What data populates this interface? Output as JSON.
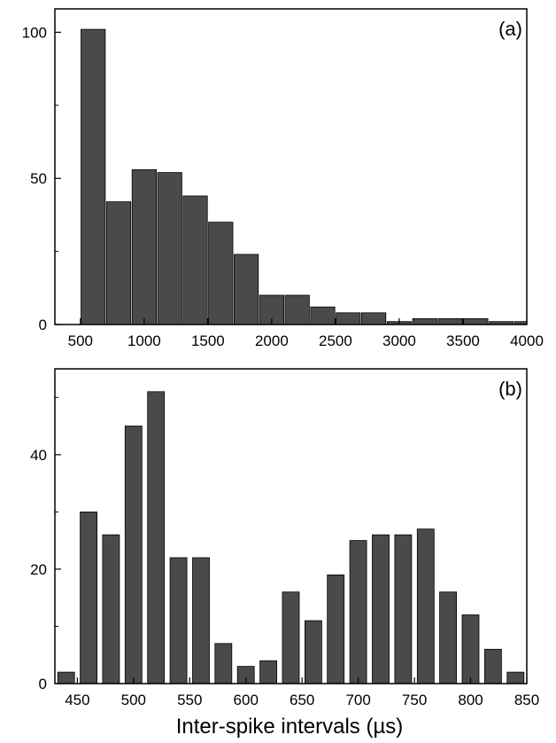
{
  "figure": {
    "xlabel": "Inter-spike intervals (µs)",
    "bar_color": "#4a4a4a",
    "axis_color": "#000000"
  },
  "chart_data": [
    {
      "type": "bar",
      "panel": "(a)",
      "xlim": [
        300,
        4000
      ],
      "ylim": [
        0,
        108
      ],
      "x_ticks": [
        500,
        1000,
        1500,
        2000,
        2500,
        3000,
        3500,
        4000
      ],
      "y_ticks": [
        0,
        50,
        100
      ],
      "y_minor_ticks": [
        25,
        75
      ],
      "bin_width": 190,
      "x": [
        600,
        800,
        1000,
        1200,
        1400,
        1600,
        1800,
        2000,
        2200,
        2400,
        2600,
        2800,
        3000,
        3200,
        3400,
        3600,
        3800,
        4000
      ],
      "values": [
        101,
        42,
        53,
        52,
        44,
        35,
        24,
        10,
        10,
        6,
        4,
        4,
        1,
        2,
        2,
        2,
        1,
        1
      ],
      "grid": false
    },
    {
      "type": "bar",
      "panel": "(b)",
      "xlim": [
        430,
        850
      ],
      "ylim": [
        0,
        55
      ],
      "x_ticks": [
        450,
        500,
        550,
        600,
        650,
        700,
        750,
        800,
        850
      ],
      "y_ticks": [
        0,
        20,
        40
      ],
      "y_minor_ticks": [
        10,
        30,
        50
      ],
      "bin_width": 15,
      "x": [
        440,
        460,
        480,
        500,
        520,
        540,
        560,
        580,
        600,
        620,
        640,
        660,
        680,
        700,
        720,
        740,
        760,
        780,
        800,
        820,
        840
      ],
      "values": [
        2,
        30,
        26,
        45,
        51,
        22,
        22,
        7,
        3,
        4,
        16,
        11,
        19,
        25,
        26,
        26,
        27,
        16,
        12,
        6,
        2
      ],
      "grid": false
    }
  ]
}
